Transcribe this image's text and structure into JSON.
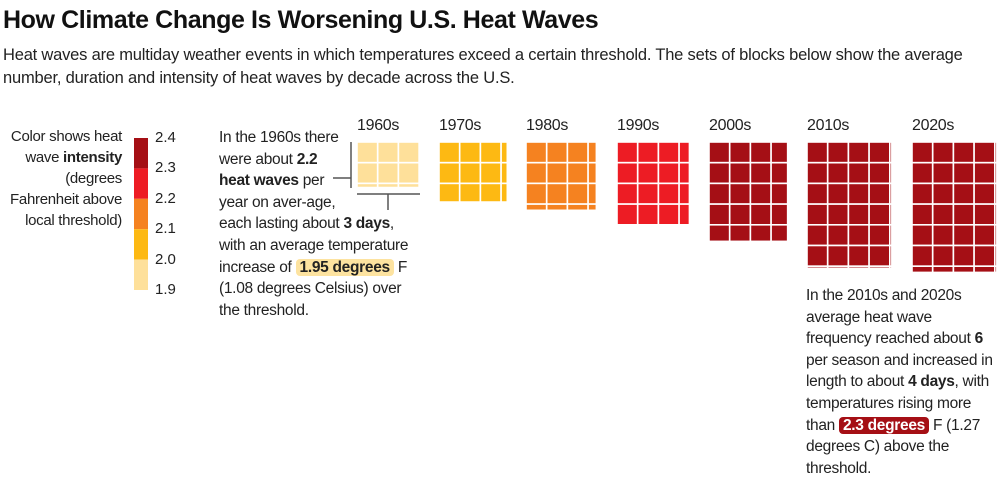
{
  "title": "How Climate Change Is Worsening U.S. Heat Waves",
  "subtitle": "Heat waves are multiday weather events in which temperatures exceed a certain threshold. The sets of blocks below show the average number, duration and intensity of heat waves by decade across the U.S.",
  "legend": {
    "text_pre": "Color shows heat wave ",
    "text_bold": "intensity",
    "text_post": " (degrees Fahrenheit above local threshold)",
    "ticks": [
      "2.4",
      "2.3",
      "2.2",
      "2.1",
      "2.0",
      "1.9"
    ],
    "colors": [
      "#a50f15",
      "#ed1c24",
      "#f58220",
      "#fdb913",
      "#fee09a"
    ]
  },
  "note1": {
    "a": "In the 1960s there were about ",
    "b": "2.2 heat waves",
    "c": " per year on aver-age, each lasting about ",
    "d": "3 days",
    "e": ", with an average temperature increase of ",
    "f": "1.95 degrees",
    "g": " F (1.08 degrees Celsius) over the threshold."
  },
  "note2": {
    "a": "In the 2010s and 2020s average heat wave frequency reached about ",
    "b": "6",
    "c": " per season and increased in length to about ",
    "d": "4 days",
    "e": ", with temperatures rising more than ",
    "f": "2.3 degrees",
    "g": " F (1.27 degrees C) above the threshold."
  },
  "chart_data": {
    "type": "block-grid",
    "title": "How Climate Change Is Worsening U.S. Heat Waves",
    "encoding": {
      "rows": "heat waves per year",
      "columns": "duration (days)",
      "color": "intensity (°F above local threshold)"
    },
    "categories": [
      "1960s",
      "1970s",
      "1980s",
      "1990s",
      "2000s",
      "2010s",
      "2020s"
    ],
    "frequency": [
      2.2,
      2.9,
      3.3,
      4.0,
      4.8,
      6.1,
      6.3
    ],
    "duration": [
      3.0,
      3.3,
      3.4,
      3.5,
      3.8,
      4.1,
      4.1
    ],
    "intensity": [
      1.95,
      2.05,
      2.15,
      2.25,
      2.35,
      2.35,
      2.35
    ],
    "color_scale": {
      "breaks": [
        1.9,
        2.0,
        2.1,
        2.2,
        2.3,
        2.4
      ],
      "colors": [
        "#fee09a",
        "#fdb913",
        "#f58220",
        "#ed1c24",
        "#a50f15"
      ]
    }
  }
}
